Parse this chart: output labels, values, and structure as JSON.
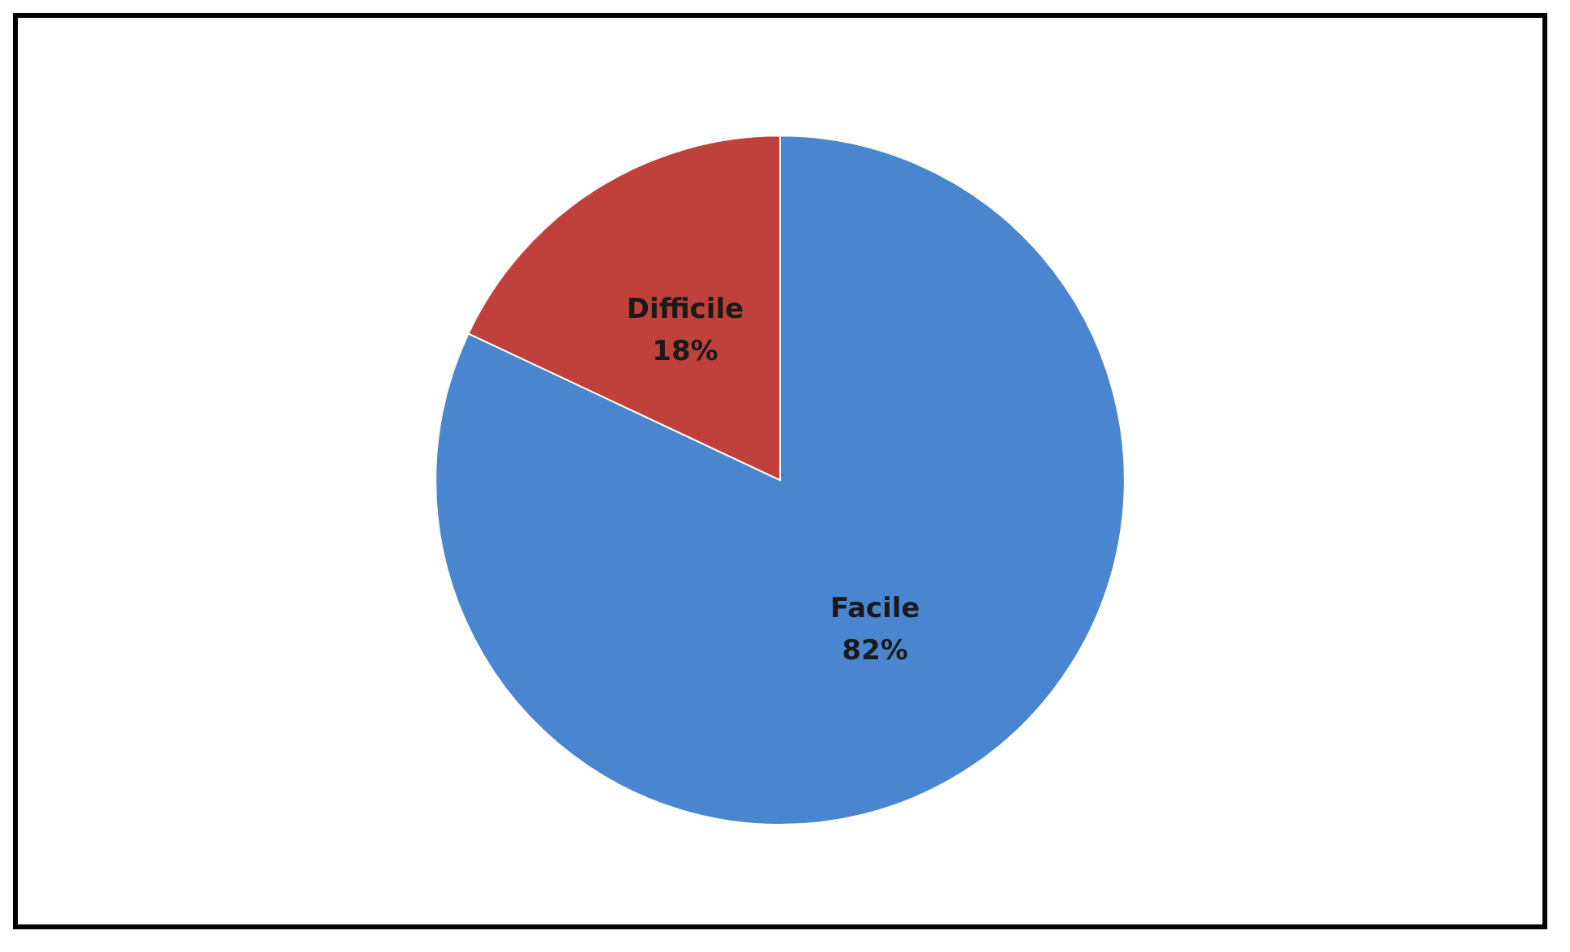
{
  "chart_data": {
    "type": "pie",
    "categories": [
      "Facile",
      "Difficile"
    ],
    "values": [
      82,
      18
    ],
    "colors": [
      "#4a86d0",
      "#c0403b"
    ],
    "value_labels": [
      "82%",
      "18%"
    ],
    "legend": false
  }
}
